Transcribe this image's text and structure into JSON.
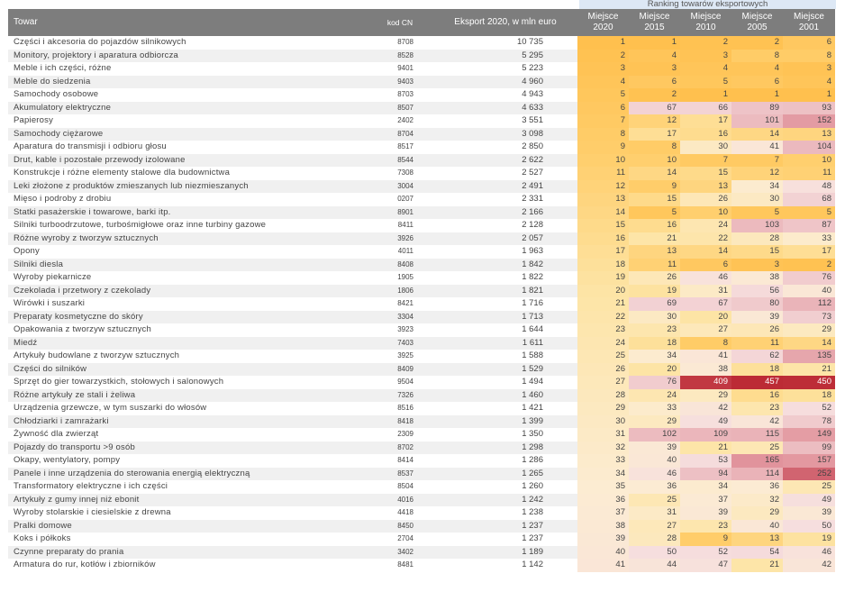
{
  "caption": "Ranking towarów eksportowych",
  "headers": {
    "towar": "Towar",
    "kod": "kod CN",
    "eksport": "Eksport 2020, w mln euro",
    "ranks": [
      {
        "top": "Miejsce",
        "bottom": "2020"
      },
      {
        "top": "Miejsce",
        "bottom": "2015"
      },
      {
        "top": "Miejsce",
        "bottom": "2010"
      },
      {
        "top": "Miejsce",
        "bottom": "2005"
      },
      {
        "top": "Miejsce",
        "bottom": "2001"
      }
    ]
  },
  "rows": [
    {
      "name": "Części i akcesoria do pojazdów silnikowych",
      "code": "8708",
      "export": "10 735",
      "ranks": [
        1,
        1,
        2,
        2,
        6
      ]
    },
    {
      "name": "Monitory, projektory i aparatura odbiorcza",
      "code": "8528",
      "export": "5 295",
      "ranks": [
        2,
        4,
        3,
        8,
        8
      ]
    },
    {
      "name": "Meble i ich części, różne",
      "code": "9401",
      "export": "5 223",
      "ranks": [
        3,
        3,
        4,
        4,
        3
      ]
    },
    {
      "name": "Meble do siedzenia",
      "code": "9403",
      "export": "4 960",
      "ranks": [
        4,
        6,
        5,
        6,
        4
      ]
    },
    {
      "name": "Samochody osobowe",
      "code": "8703",
      "export": "4 943",
      "ranks": [
        5,
        2,
        1,
        1,
        1
      ]
    },
    {
      "name": "Akumulatory elektryczne",
      "code": "8507",
      "export": "4 633",
      "ranks": [
        6,
        67,
        66,
        89,
        93
      ]
    },
    {
      "name": "Papierosy",
      "code": "2402",
      "export": "3 551",
      "ranks": [
        7,
        12,
        17,
        101,
        152
      ]
    },
    {
      "name": "Samochody ciężarowe",
      "code": "8704",
      "export": "3 098",
      "ranks": [
        8,
        17,
        16,
        14,
        13
      ]
    },
    {
      "name": "Aparatura do transmisji i odbioru głosu",
      "code": "8517",
      "export": "2 850",
      "ranks": [
        9,
        8,
        30,
        41,
        104
      ]
    },
    {
      "name": "Drut, kable i pozostałe przewody izolowane",
      "code": "8544",
      "export": "2 622",
      "ranks": [
        10,
        10,
        7,
        7,
        10
      ]
    },
    {
      "name": "Konstrukcje i różne elementy stalowe dla budownictwa",
      "code": "7308",
      "export": "2 527",
      "ranks": [
        11,
        14,
        15,
        12,
        11
      ]
    },
    {
      "name": "Leki złożone z produktów zmieszanych lub niezmieszanych",
      "code": "3004",
      "export": "2 491",
      "ranks": [
        12,
        9,
        13,
        34,
        48
      ]
    },
    {
      "name": "Mięso i podroby z drobiu",
      "code": "0207",
      "export": "2 331",
      "ranks": [
        13,
        15,
        26,
        30,
        68
      ]
    },
    {
      "name": "Statki pasażerskie i towarowe, barki itp.",
      "code": "8901",
      "export": "2 166",
      "ranks": [
        14,
        5,
        10,
        5,
        5
      ]
    },
    {
      "name": "Silniki turboodrzutowe, turbośmigłowe oraz inne turbiny gazowe",
      "code": "8411",
      "export": "2 128",
      "ranks": [
        15,
        16,
        24,
        103,
        87
      ]
    },
    {
      "name": "Różne wyroby z tworzyw sztucznych",
      "code": "3926",
      "export": "2 057",
      "ranks": [
        16,
        21,
        22,
        28,
        33
      ]
    },
    {
      "name": "Opony",
      "code": "4011",
      "export": "1 963",
      "ranks": [
        17,
        13,
        14,
        15,
        17
      ]
    },
    {
      "name": "Silniki diesla",
      "code": "8408",
      "export": "1 842",
      "ranks": [
        18,
        11,
        6,
        3,
        2
      ]
    },
    {
      "name": "Wyroby piekarnicze",
      "code": "1905",
      "export": "1 822",
      "ranks": [
        19,
        26,
        46,
        38,
        76
      ]
    },
    {
      "name": "Czekolada i przetwory z czekolady",
      "code": "1806",
      "export": "1 821",
      "ranks": [
        20,
        19,
        31,
        56,
        40
      ]
    },
    {
      "name": "Wirówki i suszarki",
      "code": "8421",
      "export": "1 716",
      "ranks": [
        21,
        69,
        67,
        80,
        112
      ]
    },
    {
      "name": "Preparaty kosmetyczne do skóry",
      "code": "3304",
      "export": "1 713",
      "ranks": [
        22,
        30,
        20,
        39,
        73
      ]
    },
    {
      "name": "Opakowania z tworzyw sztucznych",
      "code": "3923",
      "export": "1 644",
      "ranks": [
        23,
        23,
        27,
        26,
        29
      ]
    },
    {
      "name": "Miedź",
      "code": "7403",
      "export": "1 611",
      "ranks": [
        24,
        18,
        8,
        11,
        14
      ]
    },
    {
      "name": "Artykuły budowlane z tworzyw sztucznych",
      "code": "3925",
      "export": "1 588",
      "ranks": [
        25,
        34,
        41,
        62,
        135
      ]
    },
    {
      "name": "Części do silników",
      "code": "8409",
      "export": "1 529",
      "ranks": [
        26,
        20,
        38,
        18,
        21
      ]
    },
    {
      "name": "Sprzęt do gier towarzystkich, stołowych i salonowych",
      "code": "9504",
      "export": "1 494",
      "ranks": [
        27,
        76,
        409,
        457,
        450
      ]
    },
    {
      "name": "Różne artykuły ze stali i żeliwa",
      "code": "7326",
      "export": "1 460",
      "ranks": [
        28,
        24,
        29,
        16,
        18
      ]
    },
    {
      "name": "Urządzenia grzewcze, w tym suszarki do włosów",
      "code": "8516",
      "export": "1 421",
      "ranks": [
        29,
        33,
        42,
        23,
        52
      ]
    },
    {
      "name": "Chłodziarki i zamrażarki",
      "code": "8418",
      "export": "1 399",
      "ranks": [
        30,
        29,
        49,
        42,
        78
      ]
    },
    {
      "name": "Żywność dla zwierząt",
      "code": "2309",
      "export": "1 350",
      "ranks": [
        31,
        102,
        109,
        115,
        149
      ]
    },
    {
      "name": "Pojazdy do transportu >9 osób",
      "code": "8702",
      "export": "1 298",
      "ranks": [
        32,
        39,
        21,
        25,
        99
      ]
    },
    {
      "name": "Okapy, wentylatory, pompy",
      "code": "8414",
      "export": "1 286",
      "ranks": [
        33,
        40,
        53,
        165,
        157
      ]
    },
    {
      "name": "Panele i inne urządzenia do sterowania energią elektryczną",
      "code": "8537",
      "export": "1 265",
      "ranks": [
        34,
        46,
        94,
        114,
        252
      ]
    },
    {
      "name": "Transformatory elektryczne i ich części",
      "code": "8504",
      "export": "1 260",
      "ranks": [
        35,
        36,
        34,
        36,
        25
      ]
    },
    {
      "name": "Artykuły z gumy innej niż ebonit",
      "code": "4016",
      "export": "1 242",
      "ranks": [
        36,
        25,
        37,
        32,
        49
      ]
    },
    {
      "name": "Wyroby stolarskie i ciesielskie z drewna",
      "code": "4418",
      "export": "1 238",
      "ranks": [
        37,
        31,
        39,
        29,
        39
      ]
    },
    {
      "name": "Pralki domowe",
      "code": "8450",
      "export": "1 237",
      "ranks": [
        38,
        27,
        23,
        40,
        50
      ]
    },
    {
      "name": "Koks i półkoks",
      "code": "2704",
      "export": "1 237",
      "ranks": [
        39,
        28,
        9,
        13,
        19
      ]
    },
    {
      "name": "Czynne preparaty do prania",
      "code": "3402",
      "export": "1 189",
      "ranks": [
        40,
        50,
        52,
        54,
        46
      ]
    },
    {
      "name": "Armatura do rur, kotłów i zbiorników",
      "code": "8481",
      "export": "1 142",
      "ranks": [
        41,
        44,
        47,
        21,
        42
      ]
    }
  ]
}
